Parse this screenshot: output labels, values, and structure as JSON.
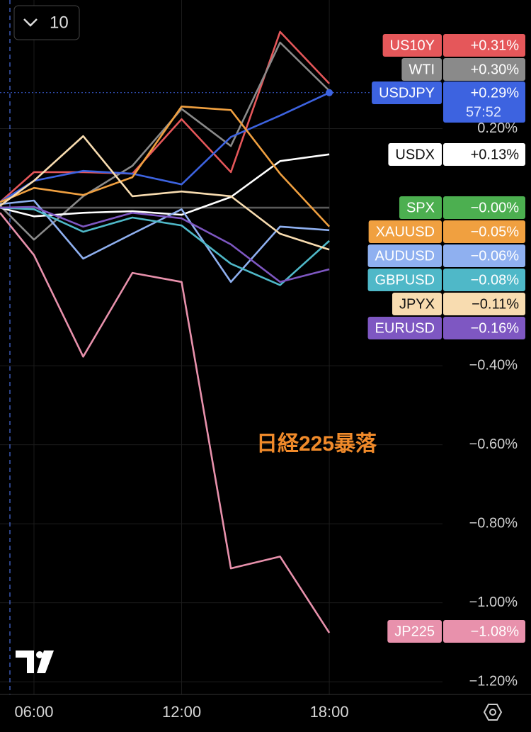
{
  "chart_data": {
    "type": "line",
    "interval": "10",
    "annotation": "日経225暴落",
    "countdown": "57:52",
    "x": [
      4.62,
      6,
      8,
      10,
      12,
      14,
      16,
      18
    ],
    "xlim": [
      4.62,
      22.6
    ],
    "xticks": [
      {
        "value": 6,
        "label": "06:00"
      },
      {
        "value": 12,
        "label": "12:00"
      },
      {
        "value": 18,
        "label": "18:00"
      }
    ],
    "ylim": [
      -1.232,
      0.5256
    ],
    "yticks": [
      {
        "value": 0.2,
        "label": "0.20%"
      },
      {
        "value": -0.4,
        "label": "−0.40%"
      },
      {
        "value": -0.6,
        "label": "−0.60%"
      },
      {
        "value": -0.8,
        "label": "−0.80%"
      },
      {
        "value": -1.0,
        "label": "−1.00%"
      },
      {
        "value": -1.2,
        "label": "−1.20%"
      }
    ],
    "grid": true,
    "series": [
      {
        "name": "US10Y",
        "color": "#e5575a",
        "values": [
          0.014,
          0.09,
          0.09,
          0.086,
          0.224,
          0.09,
          0.445,
          0.314
        ],
        "value_labels": [
          null,
          null,
          null,
          null,
          null,
          null,
          null,
          "+0.31%"
        ]
      },
      {
        "name": "WTI",
        "color": "#8a8a8a",
        "values": [
          0.005,
          -0.081,
          0.029,
          0.106,
          0.25,
          0.156,
          0.418,
          0.296
        ],
        "value_labels": [
          null,
          null,
          null,
          null,
          null,
          null,
          null,
          "+0.30%"
        ]
      },
      {
        "name": "USDJPY",
        "color": "#3d63e0",
        "values": [
          0.014,
          0.068,
          0.093,
          0.086,
          0.059,
          0.179,
          0.233,
          0.291
        ],
        "value_labels": [
          null,
          null,
          null,
          null,
          null,
          null,
          null,
          "+0.29%"
        ]
      },
      {
        "name": "USDX",
        "color": "#ffffff",
        "values": [
          0,
          -0.022,
          -0.013,
          -0.009,
          -0.018,
          0.027,
          0.118,
          0.135
        ],
        "value_labels": [
          null,
          null,
          null,
          null,
          null,
          null,
          null,
          "+0.13%"
        ]
      },
      {
        "name": "SPX",
        "color": "#4caf50",
        "line_color": "#5a5a5a",
        "values": [
          0,
          0,
          0,
          0,
          0,
          0,
          0,
          0
        ],
        "value_labels": [
          null,
          null,
          null,
          null,
          null,
          null,
          null,
          "−0.00%"
        ]
      },
      {
        "name": "XAUUSD",
        "color": "#f0a040",
        "values": [
          0.014,
          0.05,
          0.032,
          0.077,
          0.256,
          0.247,
          0.086,
          -0.048
        ],
        "value_labels": [
          null,
          null,
          null,
          null,
          null,
          null,
          null,
          "−0.05%"
        ]
      },
      {
        "name": "AUDUSD",
        "color": "#8fb0f0",
        "values": [
          0.009,
          0.018,
          -0.129,
          -0.066,
          -0.004,
          -0.188,
          -0.048,
          -0.057
        ],
        "value_labels": [
          null,
          null,
          null,
          null,
          null,
          null,
          null,
          "−0.06%"
        ]
      },
      {
        "name": "GBPUSD",
        "color": "#4fb8c8",
        "values": [
          0,
          -0.004,
          -0.061,
          -0.025,
          -0.045,
          -0.142,
          -0.196,
          -0.084
        ],
        "value_labels": [
          null,
          null,
          null,
          null,
          null,
          null,
          null,
          "−0.08%"
        ]
      },
      {
        "name": "JPYX",
        "color": "#f8dcb0",
        "values": [
          0.005,
          0.068,
          0.181,
          0.029,
          0.041,
          0.029,
          -0.066,
          -0.106
        ],
        "value_labels": [
          null,
          null,
          null,
          null,
          null,
          null,
          null,
          "−0.11%"
        ]
      },
      {
        "name": "EURUSD",
        "color": "#7e57c2",
        "values": [
          0,
          0.002,
          -0.048,
          -0.013,
          -0.027,
          -0.093,
          -0.188,
          -0.156
        ],
        "value_labels": [
          null,
          null,
          null,
          null,
          null,
          null,
          null,
          "−0.16%"
        ]
      },
      {
        "name": "JP225",
        "color": "#e891ac",
        "values": [
          -0.013,
          -0.12,
          -0.377,
          -0.165,
          -0.188,
          -0.913,
          -0.883,
          -1.076
        ],
        "value_labels": [
          null,
          null,
          null,
          null,
          null,
          null,
          null,
          "−1.08%"
        ]
      }
    ]
  }
}
